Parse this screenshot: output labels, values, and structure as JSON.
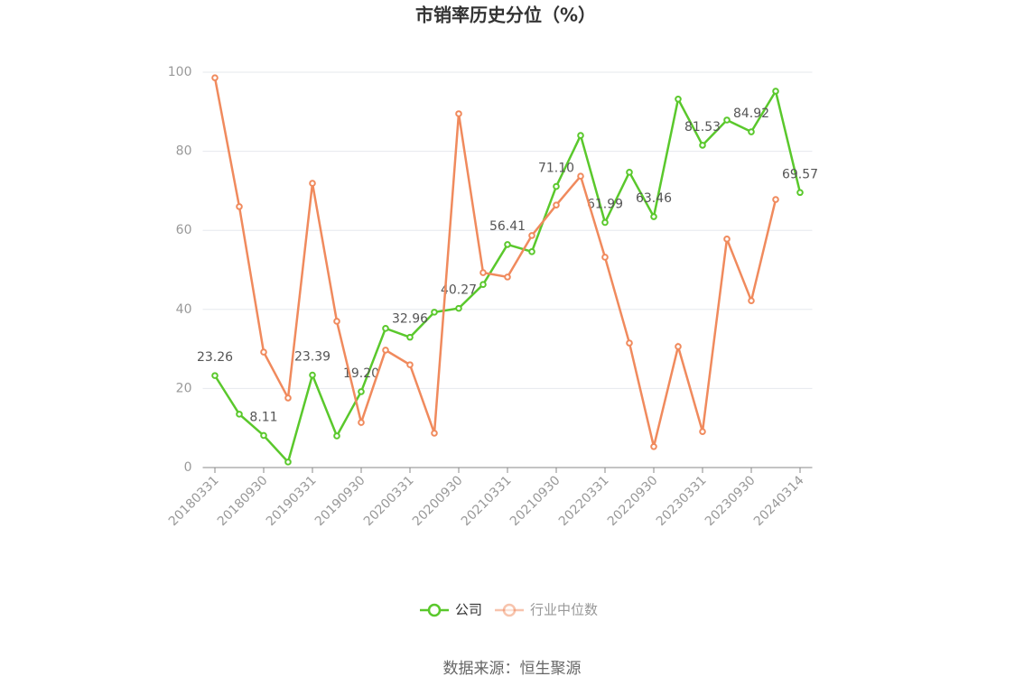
{
  "chart_data": {
    "type": "line",
    "title": "市销率历史分位（%）",
    "categories": [
      "20180331",
      null,
      "20180930",
      null,
      "20190331",
      null,
      "20190930",
      null,
      "20200331",
      null,
      "20200930",
      null,
      "20210331",
      null,
      "20210930",
      null,
      "20220331",
      null,
      "20220930",
      null,
      "20230331",
      null,
      "20230930",
      null,
      "20240314"
    ],
    "series": [
      {
        "name": "公司",
        "color": "#5ac82c",
        "values": [
          23.26,
          13.5,
          8.11,
          1.4,
          23.39,
          8.0,
          19.2,
          35.2,
          32.96,
          39.3,
          40.27,
          46.3,
          56.41,
          54.6,
          71.1,
          84.0,
          61.99,
          74.7,
          63.46,
          93.2,
          81.53,
          87.9,
          84.92,
          95.2,
          69.57
        ],
        "value_labels": [
          "23.26",
          null,
          "8.11",
          null,
          "23.39",
          null,
          "19.20",
          null,
          "32.96",
          null,
          "40.27",
          null,
          "56.41",
          null,
          "71.10",
          null,
          "61.99",
          null,
          "63.46",
          null,
          "81.53",
          null,
          "84.92",
          null,
          "69.57"
        ]
      },
      {
        "name": "行业中位数",
        "color": "#f08a5d",
        "values": [
          98.6,
          66.0,
          29.2,
          17.6,
          71.9,
          37.0,
          11.4,
          29.7,
          26.0,
          8.7,
          89.5,
          49.3,
          48.2,
          58.7,
          66.4,
          73.7,
          53.2,
          31.5,
          5.3,
          30.6,
          9.1,
          57.8,
          42.2,
          67.8,
          null
        ]
      }
    ],
    "ylim": [
      0,
      100
    ],
    "yticks": [
      0,
      20,
      40,
      60,
      80,
      100
    ],
    "grid": true,
    "source": "数据来源：恒生聚源"
  }
}
